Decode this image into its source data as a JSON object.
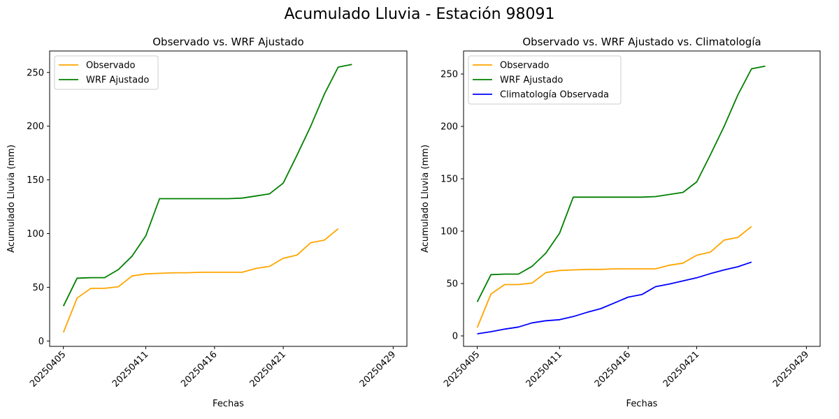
{
  "figure": {
    "suptitle": "Acumulado Lluvia - Estación 98091"
  },
  "colors": {
    "observado": "#ffa500",
    "wrf": "#008000",
    "clim": "#0000ff"
  },
  "chart_data": [
    {
      "type": "line",
      "title": "Observado vs. WRF Ajustado",
      "xlabel": "Fechas",
      "ylabel": "Acumulado Lluvia (mm)",
      "x": [
        "20250405",
        "20250406",
        "20250407",
        "20250408",
        "20250409",
        "20250410",
        "20250411",
        "20250412",
        "20250413",
        "20250414",
        "20250415",
        "20250416",
        "20250417",
        "20250418",
        "20250419",
        "20250420",
        "20250421",
        "20250422",
        "20250423",
        "20250424",
        "20250425",
        "20250426",
        "20250427",
        "20250428",
        "20250429"
      ],
      "xticks": [
        "20250405",
        "20250411",
        "20250416",
        "20250421",
        "20250429"
      ],
      "xlim": [
        "20250404",
        "20250430"
      ],
      "ylim": [
        -5,
        270
      ],
      "yticks": [
        0,
        50,
        100,
        150,
        200,
        250
      ],
      "grid": false,
      "legend": "top-left",
      "series": [
        {
          "name": "Observado",
          "color": "#ffa500",
          "values": [
            8,
            40,
            49,
            49,
            50.5,
            60.5,
            62.5,
            63,
            63.5,
            63.5,
            64,
            64,
            64,
            64,
            67.5,
            69.5,
            77,
            80,
            91.5,
            94,
            104.5,
            null,
            null,
            null,
            null
          ]
        },
        {
          "name": "WRF Ajustado",
          "color": "#008000",
          "values": [
            32.5,
            58.5,
            59,
            59,
            66.5,
            79,
            98,
            132.5,
            132.5,
            132.5,
            132.5,
            132.5,
            132.5,
            133,
            135,
            137,
            147,
            173,
            200,
            230,
            255,
            257.5,
            null,
            null,
            null
          ]
        }
      ]
    },
    {
      "type": "line",
      "title": "Observado vs. WRF Ajustado vs. Climatología",
      "xlabel": "Fechas",
      "ylabel": "Acumulado Lluvia (mm)",
      "x": [
        "20250405",
        "20250406",
        "20250407",
        "20250408",
        "20250409",
        "20250410",
        "20250411",
        "20250412",
        "20250413",
        "20250414",
        "20250415",
        "20250416",
        "20250417",
        "20250418",
        "20250419",
        "20250420",
        "20250421",
        "20250422",
        "20250423",
        "20250424",
        "20250425",
        "20250426",
        "20250427",
        "20250428",
        "20250429"
      ],
      "xticks": [
        "20250405",
        "20250411",
        "20250416",
        "20250421",
        "20250429"
      ],
      "xlim": [
        "20250404",
        "20250430"
      ],
      "ylim": [
        -10,
        272
      ],
      "yticks": [
        0,
        50,
        100,
        150,
        200,
        250
      ],
      "grid": false,
      "legend": "top-left",
      "series": [
        {
          "name": "Observado",
          "color": "#ffa500",
          "values": [
            8,
            40,
            49,
            49,
            50.5,
            60.5,
            62.5,
            63,
            63.5,
            63.5,
            64,
            64,
            64,
            64,
            67.5,
            69.5,
            77,
            80,
            91.5,
            94,
            104.5,
            null,
            null,
            null,
            null
          ]
        },
        {
          "name": "WRF Ajustado",
          "color": "#008000",
          "values": [
            32.5,
            58.5,
            59,
            59,
            66.5,
            79,
            98,
            132.5,
            132.5,
            132.5,
            132.5,
            132.5,
            132.5,
            133,
            135,
            137,
            147,
            173,
            200,
            230,
            255,
            257.5,
            null,
            null,
            null
          ]
        },
        {
          "name": "Climatología Observada",
          "color": "#0000ff",
          "values": [
            2,
            4,
            6.5,
            8.5,
            12.5,
            14.5,
            15.5,
            18.5,
            22.5,
            26,
            31.5,
            37,
            39.5,
            47,
            49.5,
            52.5,
            55.5,
            59.5,
            63,
            66,
            70.5,
            null,
            null,
            null,
            null
          ]
        }
      ]
    }
  ]
}
